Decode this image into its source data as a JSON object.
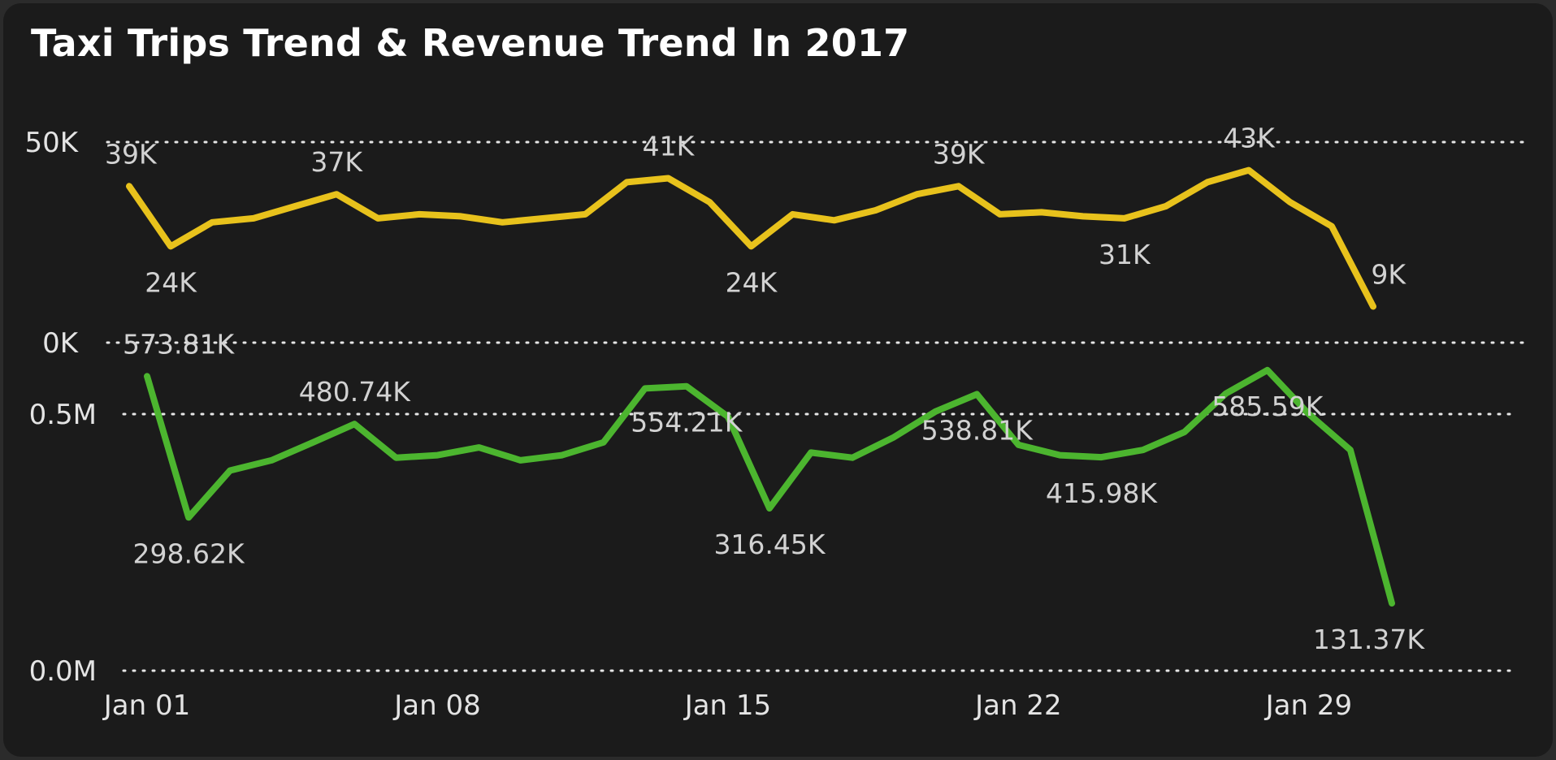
{
  "title": "Taxi Trips Trend & Revenue Trend In 2017",
  "colors": {
    "background": "#1b1b1b",
    "trips_line": "#e8c21c",
    "revenue_line": "#4cb52f",
    "text": "#d2d2d2"
  },
  "chart_data": [
    {
      "type": "line",
      "title": "Taxi Trips Trend",
      "x": [
        1,
        2,
        3,
        4,
        5,
        6,
        7,
        8,
        9,
        10,
        11,
        12,
        13,
        14,
        15,
        16,
        17,
        18,
        19,
        20,
        21,
        22,
        23,
        24,
        25,
        26,
        27,
        28,
        29,
        30,
        31
      ],
      "xlabel": "",
      "ylabel": "",
      "ylim": [
        0,
        50000
      ],
      "yticks": [
        {
          "value": 0,
          "label": "0K"
        },
        {
          "value": 50000,
          "label": "50K"
        }
      ],
      "grid": true,
      "series": [
        {
          "values": [
            39000,
            24000,
            30000,
            31000,
            34000,
            37000,
            31000,
            32000,
            31500,
            30000,
            31000,
            32000,
            40000,
            41000,
            35000,
            24000,
            32000,
            30500,
            33000,
            37000,
            39000,
            32000,
            32500,
            31500,
            31000,
            34000,
            40000,
            43000,
            35000,
            29000,
            9000
          ],
          "data_labels": [
            {
              "day": 1,
              "text": "39K",
              "position": "above"
            },
            {
              "day": 2,
              "text": "24K",
              "position": "below"
            },
            {
              "day": 6,
              "text": "37K",
              "position": "above"
            },
            {
              "day": 14,
              "text": "41K",
              "position": "above"
            },
            {
              "day": 16,
              "text": "24K",
              "position": "below"
            },
            {
              "day": 21,
              "text": "39K",
              "position": "above"
            },
            {
              "day": 25,
              "text": "31K",
              "position": "below"
            },
            {
              "day": 28,
              "text": "43K",
              "position": "above"
            },
            {
              "day": 31,
              "text": "9K",
              "position": "above"
            }
          ]
        }
      ]
    },
    {
      "type": "line",
      "title": "Revenue Trend",
      "x": [
        1,
        2,
        3,
        4,
        5,
        6,
        7,
        8,
        9,
        10,
        11,
        12,
        13,
        14,
        15,
        16,
        17,
        18,
        19,
        20,
        21,
        22,
        23,
        24,
        25,
        26,
        27,
        28,
        29,
        30,
        31
      ],
      "xlabel": "",
      "ylabel": "",
      "ylim": [
        0,
        650000
      ],
      "yticks": [
        {
          "value": 0,
          "label": "0.0M"
        },
        {
          "value": 500000,
          "label": "0.5M"
        }
      ],
      "xticks": [
        {
          "day": 1,
          "label": "Jan 01"
        },
        {
          "day": 8,
          "label": "Jan 08"
        },
        {
          "day": 15,
          "label": "Jan 15"
        },
        {
          "day": 22,
          "label": "Jan 22"
        },
        {
          "day": 29,
          "label": "Jan 29"
        }
      ],
      "grid": true,
      "series": [
        {
          "values": [
            573810,
            298620,
            390000,
            410000,
            445000,
            480740,
            415000,
            420000,
            435000,
            410000,
            420000,
            445000,
            550000,
            554210,
            495000,
            316450,
            425000,
            415000,
            455000,
            505000,
            538810,
            440000,
            420000,
            415980,
            430000,
            465000,
            540000,
            585590,
            500000,
            430000,
            131370
          ],
          "data_labels": [
            {
              "day": 1,
              "text": "573.81K",
              "position": "above"
            },
            {
              "day": 2,
              "text": "298.62K",
              "position": "below"
            },
            {
              "day": 6,
              "text": "480.74K",
              "position": "above"
            },
            {
              "day": 14,
              "text": "554.21K",
              "position": "below"
            },
            {
              "day": 16,
              "text": "316.45K",
              "position": "below"
            },
            {
              "day": 21,
              "text": "538.81K",
              "position": "below"
            },
            {
              "day": 24,
              "text": "415.98K",
              "position": "below"
            },
            {
              "day": 28,
              "text": "585.59K",
              "position": "below"
            },
            {
              "day": 31,
              "text": "131.37K",
              "position": "below"
            }
          ]
        }
      ]
    }
  ]
}
